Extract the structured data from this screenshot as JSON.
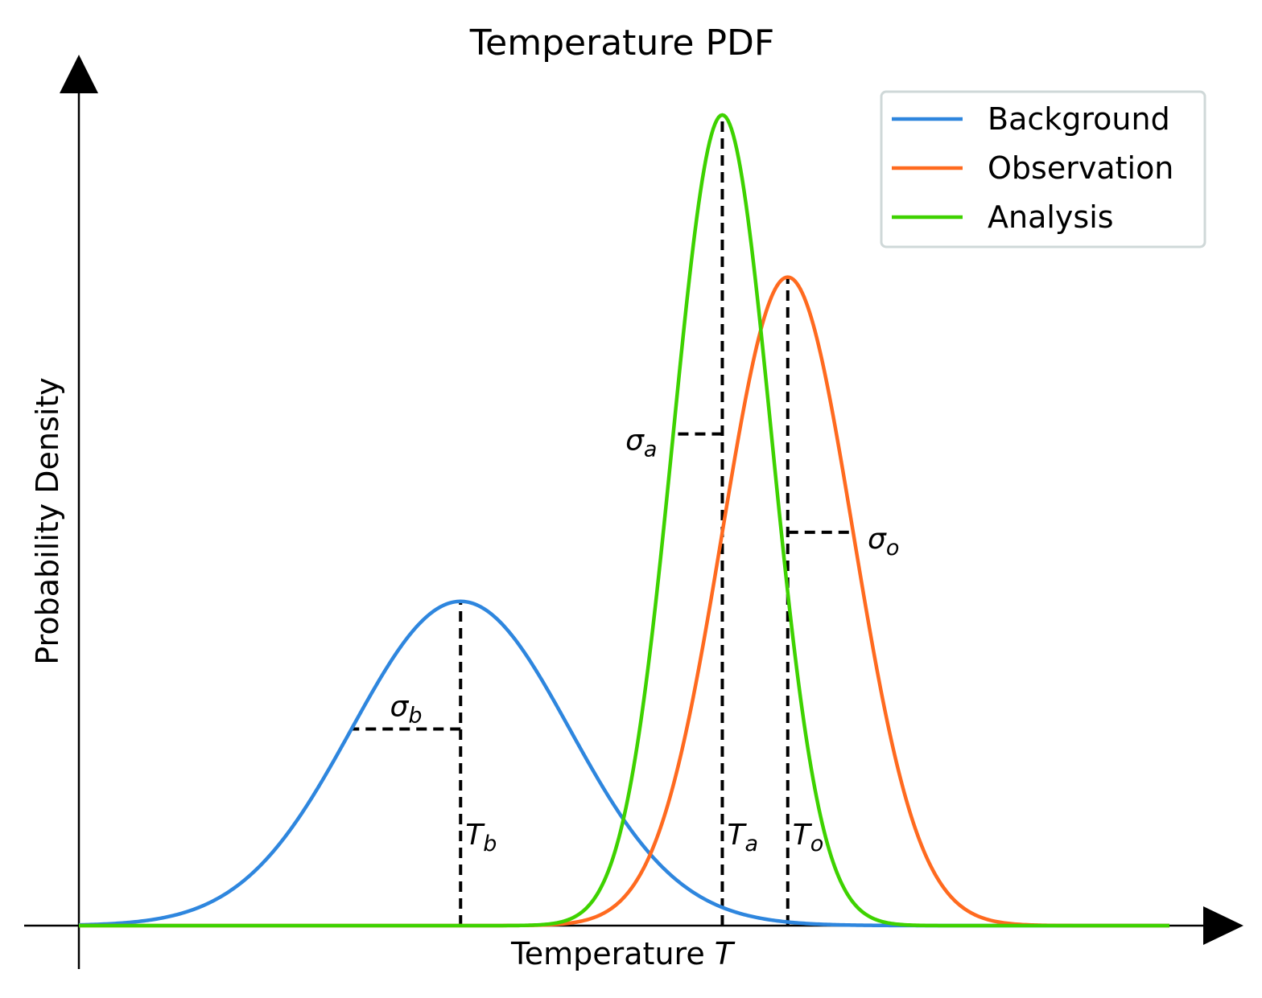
{
  "chart_data": {
    "type": "line",
    "title": "Temperature PDF",
    "xlabel": "Temperature",
    "xlabel_symbol": "T",
    "ylabel": "Probability Density",
    "axis_ticks": "none",
    "axes_with_arrows": true,
    "grid": false,
    "legend_position": "top-right",
    "xlim": [
      0,
      10
    ],
    "ylim": [
      0,
      1
    ],
    "series": [
      {
        "name": "Background",
        "color": "#2e86de",
        "mean": 3.5,
        "std": 1.0,
        "peak": 0.4
      },
      {
        "name": "Observation",
        "color": "#ff6a1f",
        "mean": 6.5,
        "std": 0.6,
        "peak": 0.8
      },
      {
        "name": "Analysis",
        "color": "#3ed200",
        "mean": 5.9,
        "std": 0.45,
        "peak": 1.0
      }
    ],
    "annotations": {
      "means": [
        {
          "base": "T",
          "sub": "b",
          "x": 3.5
        },
        {
          "base": "T",
          "sub": "a",
          "x": 5.9
        },
        {
          "base": "T",
          "sub": "o",
          "x": 6.5
        }
      ],
      "sigmas": [
        {
          "base": "σ",
          "sub": "b",
          "series": "Background",
          "direction": "left"
        },
        {
          "base": "σ",
          "sub": "a",
          "series": "Analysis",
          "direction": "left"
        },
        {
          "base": "σ",
          "sub": "o",
          "series": "Observation",
          "direction": "right"
        }
      ]
    }
  }
}
